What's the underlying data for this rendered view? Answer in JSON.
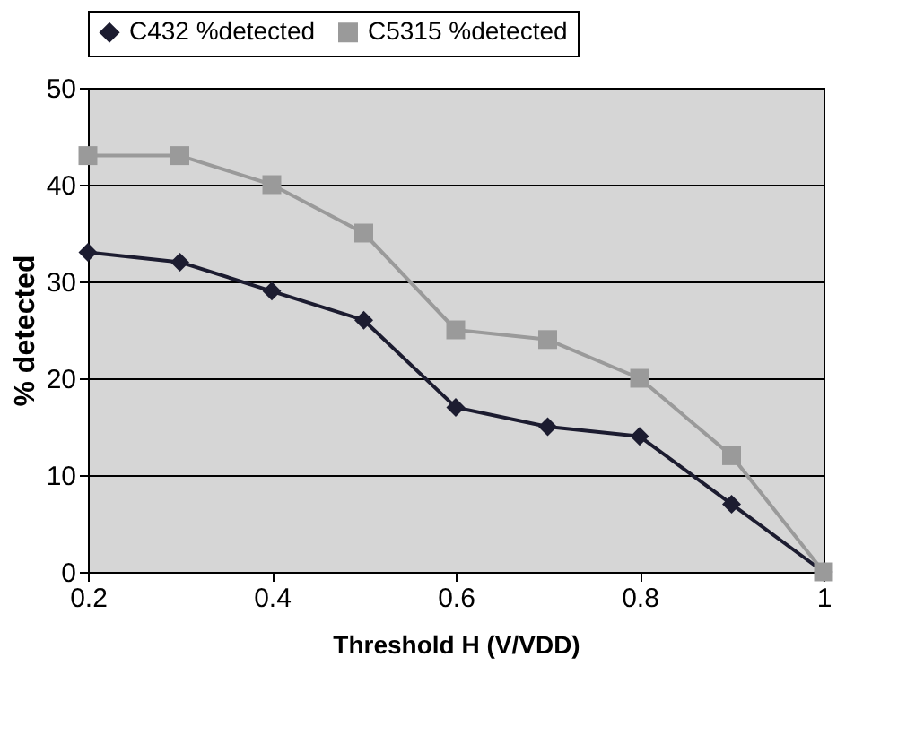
{
  "chart_data": {
    "type": "line",
    "xlabel": "Threshold H  (V/VDD)",
    "ylabel": "% detected",
    "x": [
      0.2,
      0.3,
      0.4,
      0.5,
      0.6,
      0.7,
      0.8,
      0.9,
      1.0
    ],
    "series": [
      {
        "name": "C432 %detected",
        "color": "#1c1c30",
        "marker": "diamond",
        "values": [
          33,
          32,
          29,
          26,
          17,
          15,
          14,
          7,
          0
        ]
      },
      {
        "name": "C5315 %detected",
        "color": "#9a9a9a",
        "marker": "square",
        "values": [
          43,
          43,
          40,
          35,
          25,
          24,
          20,
          12,
          0
        ]
      }
    ],
    "xlim": [
      0.2,
      1.0
    ],
    "xticks": [
      0.2,
      0.4,
      0.6,
      0.8,
      1
    ],
    "ylim": [
      0,
      50
    ],
    "yticks": [
      0,
      10,
      20,
      30,
      40,
      50
    ],
    "grid": "y",
    "legend": "top",
    "line_style": "solid"
  }
}
